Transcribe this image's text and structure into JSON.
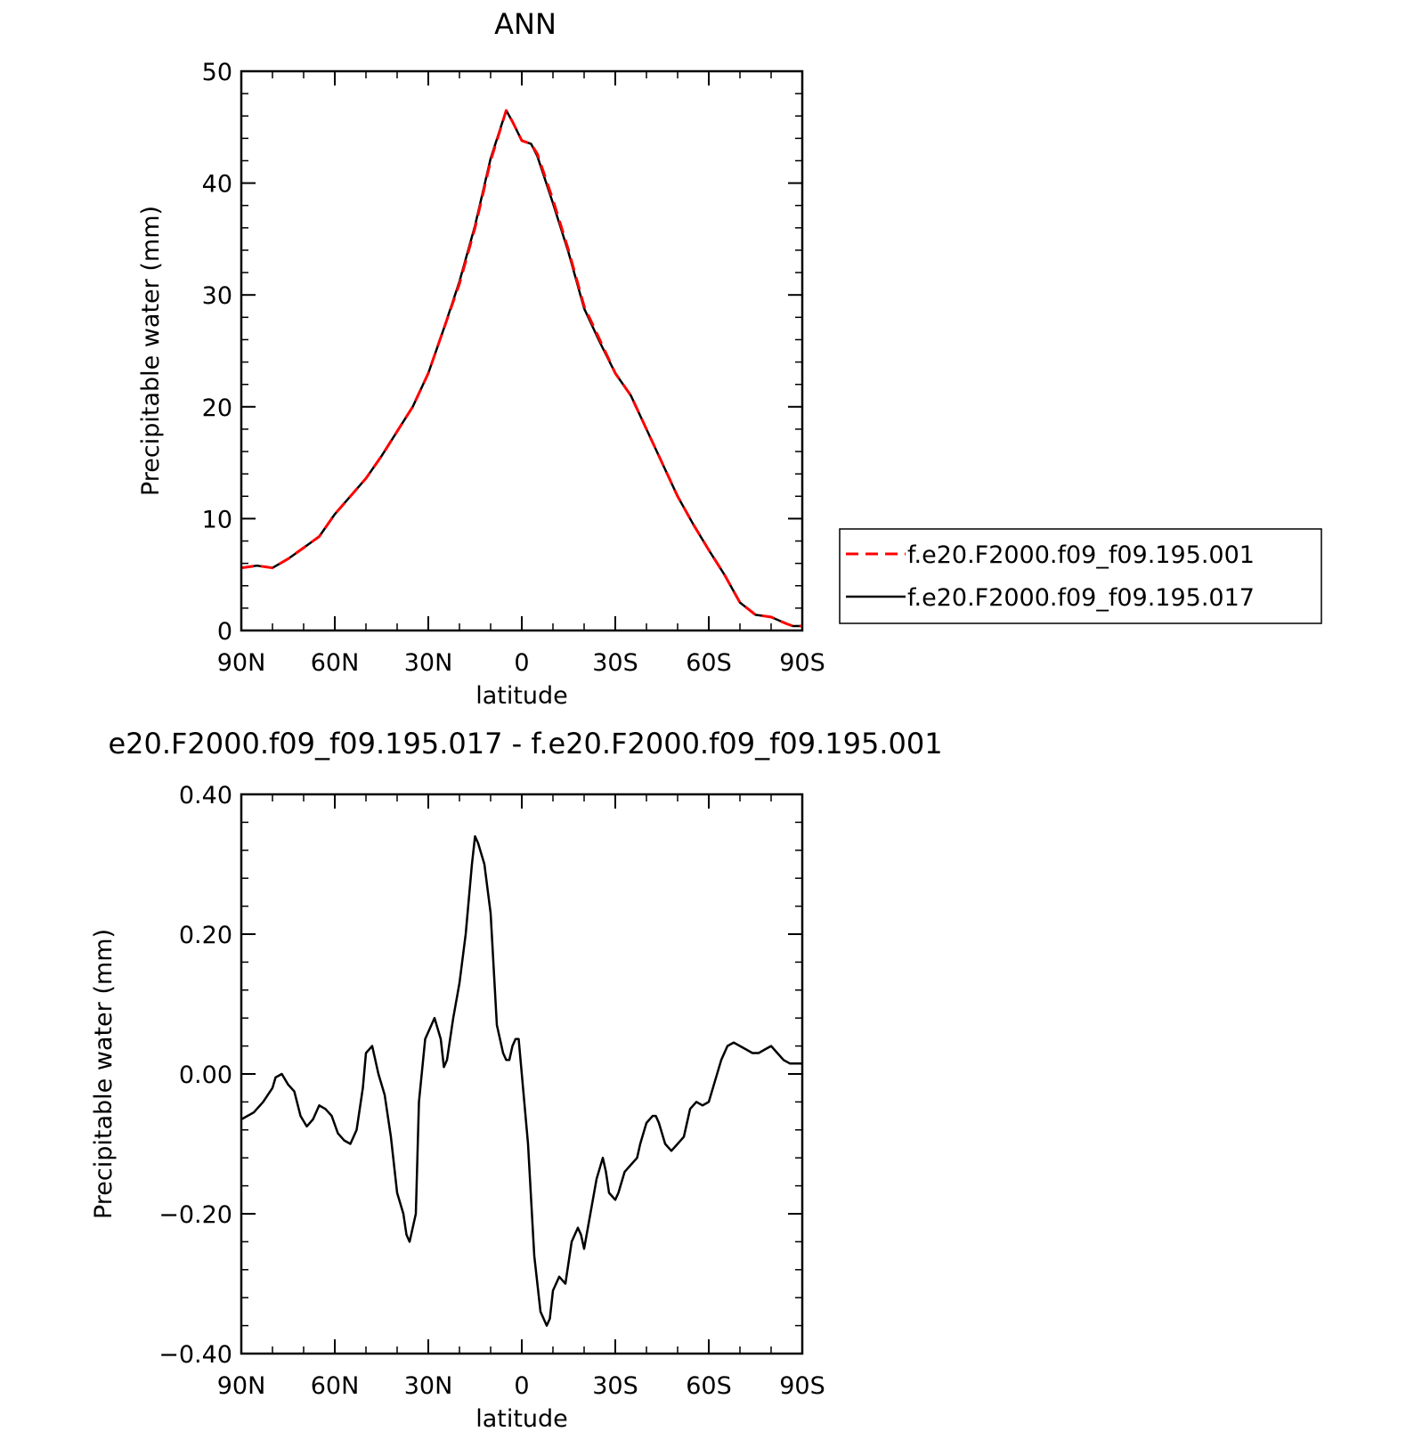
{
  "chart_data": [
    {
      "type": "line",
      "title": "ANN",
      "xlabel": "latitude",
      "ylabel": "Precipitable water (mm)",
      "xlim": [
        90,
        -90
      ],
      "ylim": [
        0,
        50
      ],
      "xticks": [
        90,
        60,
        30,
        0,
        -30,
        -60,
        -90
      ],
      "xtick_labels": [
        "90N",
        "60N",
        "30N",
        "0",
        "30S",
        "60S",
        "90S"
      ],
      "yticks": [
        0,
        10,
        20,
        30,
        40,
        50
      ],
      "ytick_labels": [
        "0",
        "10",
        "20",
        "30",
        "40",
        "50"
      ],
      "legend_position": "right",
      "grid": false,
      "series": [
        {
          "name": "f.e20.F2000.f09_f09.195.001",
          "color": "#ff0000",
          "dash": "dashed",
          "x": [
            90,
            85,
            80,
            75,
            70,
            65,
            60,
            55,
            50,
            45,
            40,
            35,
            30,
            25,
            20,
            15,
            10,
            5,
            3,
            0,
            -3,
            -5,
            -10,
            -15,
            -20,
            -25,
            -30,
            -35,
            -40,
            -45,
            -50,
            -55,
            -60,
            -65,
            -70,
            -75,
            -80,
            -85,
            -87,
            -90
          ],
          "y": [
            5.6,
            5.8,
            5.6,
            6.4,
            7.4,
            8.4,
            10.4,
            12.0,
            13.6,
            15.6,
            17.8,
            20.0,
            23.0,
            27.0,
            31.0,
            36.0,
            42.0,
            46.5,
            45.5,
            43.8,
            43.5,
            42.6,
            38.5,
            34.0,
            29.0,
            26.0,
            23.0,
            21.0,
            18.0,
            15.0,
            12.0,
            9.5,
            7.2,
            5.0,
            2.5,
            1.4,
            1.2,
            0.6,
            0.4,
            0.4
          ]
        },
        {
          "name": "f.e20.F2000.f09_f09.195.017",
          "color": "#000000",
          "dash": "solid",
          "x": [
            90,
            85,
            80,
            75,
            70,
            65,
            60,
            55,
            50,
            45,
            40,
            35,
            30,
            25,
            20,
            15,
            10,
            5,
            3,
            0,
            -3,
            -5,
            -10,
            -15,
            -20,
            -25,
            -30,
            -35,
            -40,
            -45,
            -50,
            -55,
            -60,
            -65,
            -70,
            -75,
            -80,
            -85,
            -87,
            -90
          ],
          "y": [
            5.6,
            5.8,
            5.6,
            6.4,
            7.4,
            8.4,
            10.4,
            12.0,
            13.6,
            15.6,
            17.8,
            20.0,
            23.0,
            27.0,
            31.2,
            36.2,
            42.2,
            46.5,
            45.5,
            43.8,
            43.5,
            42.4,
            38.2,
            33.8,
            28.8,
            25.8,
            23.0,
            21.0,
            18.0,
            15.0,
            12.0,
            9.5,
            7.2,
            5.0,
            2.5,
            1.4,
            1.2,
            0.6,
            0.4,
            0.4
          ]
        }
      ]
    },
    {
      "type": "line",
      "title": "e20.F2000.f09_f09.195.017 - f.e20.F2000.f09_f09.195.001",
      "xlabel": "latitude",
      "ylabel": "Precipitable water (mm)",
      "xlim": [
        90,
        -90
      ],
      "ylim": [
        -0.4,
        0.4
      ],
      "xticks": [
        90,
        60,
        30,
        0,
        -30,
        -60,
        -90
      ],
      "xtick_labels": [
        "90N",
        "60N",
        "30N",
        "0",
        "30S",
        "60S",
        "90S"
      ],
      "yticks": [
        -0.4,
        -0.2,
        0,
        0.2,
        0.4
      ],
      "ytick_labels": [
        "−0.40",
        "−0.20",
        "0.00",
        "0.20",
        "0.40"
      ],
      "grid": false,
      "series": [
        {
          "color": "#000000",
          "x": [
            90,
            86,
            83,
            80,
            79,
            77,
            75,
            73,
            71,
            69,
            67,
            65,
            63,
            61,
            59,
            57,
            55,
            53,
            51,
            50,
            48,
            46,
            44,
            42,
            40,
            38,
            37,
            36,
            34,
            33,
            31,
            29,
            28,
            26,
            25,
            24,
            22,
            20,
            18,
            16,
            15,
            14,
            12,
            10,
            8,
            6,
            5,
            4,
            3,
            2,
            1,
            0,
            -2,
            -4,
            -6,
            -8,
            -9,
            -10,
            -12,
            -14,
            -16,
            -18,
            -19,
            -20,
            -22,
            -24,
            -26,
            -27,
            -28,
            -30,
            -31,
            -33,
            -35,
            -37,
            -38,
            -40,
            -42,
            -43,
            -44,
            -46,
            -48,
            -50,
            -52,
            -54,
            -56,
            -58,
            -60,
            -62,
            -64,
            -66,
            -68,
            -70,
            -72,
            -74,
            -76,
            -78,
            -80,
            -82,
            -84,
            -86,
            -88,
            -90
          ],
          "y": [
            -0.065,
            -0.055,
            -0.04,
            -0.02,
            -0.005,
            0.0,
            -0.015,
            -0.025,
            -0.06,
            -0.075,
            -0.065,
            -0.045,
            -0.05,
            -0.06,
            -0.085,
            -0.095,
            -0.1,
            -0.08,
            -0.02,
            0.03,
            0.04,
            0.0,
            -0.03,
            -0.09,
            -0.17,
            -0.2,
            -0.23,
            -0.24,
            -0.2,
            -0.04,
            0.05,
            0.07,
            0.08,
            0.05,
            0.01,
            0.02,
            0.08,
            0.13,
            0.2,
            0.3,
            0.34,
            0.33,
            0.3,
            0.23,
            0.07,
            0.03,
            0.02,
            0.02,
            0.04,
            0.05,
            0.05,
            0.0,
            -0.1,
            -0.26,
            -0.34,
            -0.36,
            -0.35,
            -0.31,
            -0.29,
            -0.3,
            -0.24,
            -0.22,
            -0.23,
            -0.25,
            -0.2,
            -0.15,
            -0.12,
            -0.14,
            -0.17,
            -0.18,
            -0.17,
            -0.14,
            -0.13,
            -0.12,
            -0.1,
            -0.07,
            -0.06,
            -0.06,
            -0.07,
            -0.1,
            -0.11,
            -0.1,
            -0.09,
            -0.05,
            -0.04,
            -0.045,
            -0.04,
            -0.01,
            0.02,
            0.04,
            0.045,
            0.04,
            0.035,
            0.03,
            0.03,
            0.035,
            0.04,
            0.03,
            0.02,
            0.015,
            0.015,
            0.015
          ]
        }
      ]
    }
  ]
}
